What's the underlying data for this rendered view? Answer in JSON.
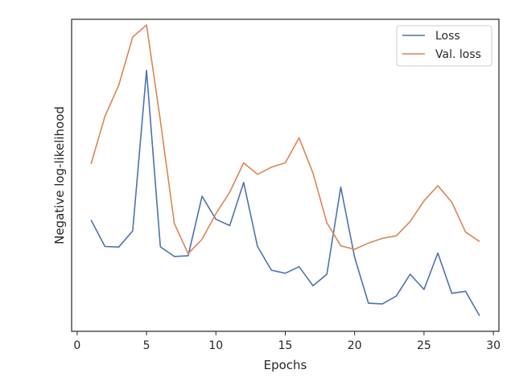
{
  "chart_data": {
    "type": "line",
    "xlabel": "Epochs",
    "ylabel": "Negative log-likelihood",
    "xlim": [
      -0.4,
      30.4
    ],
    "ylim": [
      0.0,
      1.0
    ],
    "y_tick_labels_shown": false,
    "grid": false,
    "legend_position": "top-right",
    "x_ticks": [
      0,
      5,
      10,
      15,
      20,
      25,
      30
    ],
    "x_tick_labels": [
      "0",
      "5",
      "10",
      "15",
      "20",
      "25",
      "30"
    ],
    "x": [
      1,
      2,
      3,
      4,
      5,
      6,
      7,
      8,
      9,
      10,
      11,
      12,
      13,
      14,
      15,
      16,
      17,
      18,
      19,
      20,
      21,
      22,
      23,
      24,
      25,
      26,
      27,
      28,
      29
    ],
    "series": [
      {
        "name": "Loss",
        "color": "#4c72b0",
        "values": [
          0.357,
          0.272,
          0.27,
          0.322,
          0.836,
          0.271,
          0.24,
          0.242,
          0.433,
          0.359,
          0.339,
          0.477,
          0.272,
          0.196,
          0.186,
          0.207,
          0.146,
          0.183,
          0.462,
          0.237,
          0.09,
          0.088,
          0.113,
          0.183,
          0.134,
          0.251,
          0.122,
          0.128,
          0.05
        ]
      },
      {
        "name": "Val. loss",
        "color": "#dd8452",
        "values": [
          0.536,
          0.689,
          0.789,
          0.943,
          0.982,
          0.675,
          0.346,
          0.249,
          0.295,
          0.377,
          0.446,
          0.54,
          0.503,
          0.526,
          0.54,
          0.62,
          0.507,
          0.348,
          0.274,
          0.263,
          0.283,
          0.298,
          0.306,
          0.352,
          0.418,
          0.467,
          0.414,
          0.318,
          0.288
        ]
      }
    ]
  }
}
